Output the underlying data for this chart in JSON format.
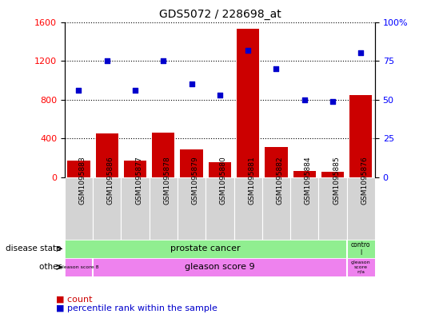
{
  "title": "GDS5072 / 228698_at",
  "samples": [
    "GSM1095883",
    "GSM1095886",
    "GSM1095877",
    "GSM1095878",
    "GSM1095879",
    "GSM1095880",
    "GSM1095881",
    "GSM1095882",
    "GSM1095884",
    "GSM1095885",
    "GSM1095876"
  ],
  "counts": [
    170,
    450,
    170,
    460,
    290,
    160,
    1530,
    310,
    70,
    60,
    850
  ],
  "percentiles": [
    56,
    75,
    56,
    75,
    60,
    53,
    82,
    70,
    50,
    49,
    80
  ],
  "bar_color": "#cc0000",
  "dot_color": "#0000cc",
  "ylim_left": [
    0,
    1600
  ],
  "ylim_right": [
    0,
    100
  ],
  "yticks_left": [
    0,
    400,
    800,
    1200,
    1600
  ],
  "yticks_right": [
    0,
    25,
    50,
    75,
    100
  ],
  "ytick_labels_right": [
    "0",
    "25",
    "50",
    "75",
    "100%"
  ],
  "grid_color": "black",
  "grid_linestyle": "dotted",
  "disease_color": "#90ee90",
  "other_color": "#ee82ee",
  "bg_color": "#d3d3d3"
}
